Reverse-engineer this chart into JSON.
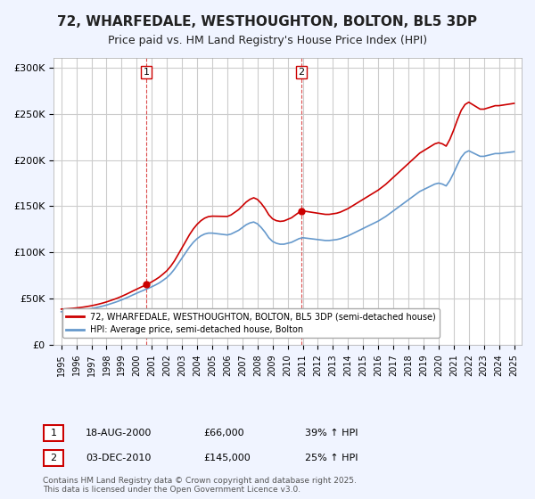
{
  "title": "72, WHARFEDALE, WESTHOUGHTON, BOLTON, BL5 3DP",
  "subtitle": "Price paid vs. HM Land Registry's House Price Index (HPI)",
  "ylabel_ticks": [
    "£0",
    "£50K",
    "£100K",
    "£150K",
    "£200K",
    "£250K",
    "£300K"
  ],
  "ytick_vals": [
    0,
    50000,
    100000,
    150000,
    200000,
    250000,
    300000
  ],
  "ylim": [
    0,
    310000
  ],
  "sale1_date_num": 2000.63,
  "sale1_price": 66000,
  "sale1_label": "1",
  "sale2_date_num": 2010.92,
  "sale2_price": 145000,
  "sale2_label": "2",
  "legend_line1": "72, WHARFEDALE, WESTHOUGHTON, BOLTON, BL5 3DP (semi-detached house)",
  "legend_line2": "HPI: Average price, semi-detached house, Bolton",
  "info1": [
    "1",
    "18-AUG-2000",
    "£66,000",
    "39% ↑ HPI"
  ],
  "info2": [
    "2",
    "03-DEC-2010",
    "£145,000",
    "25% ↑ HPI"
  ],
  "footer": "Contains HM Land Registry data © Crown copyright and database right 2025.\nThis data is licensed under the Open Government Licence v3.0.",
  "line_color_red": "#cc0000",
  "line_color_blue": "#6699cc",
  "bg_color": "#f0f4ff",
  "plot_bg": "#ffffff",
  "grid_color": "#cccccc",
  "title_fontsize": 11,
  "subtitle_fontsize": 9
}
